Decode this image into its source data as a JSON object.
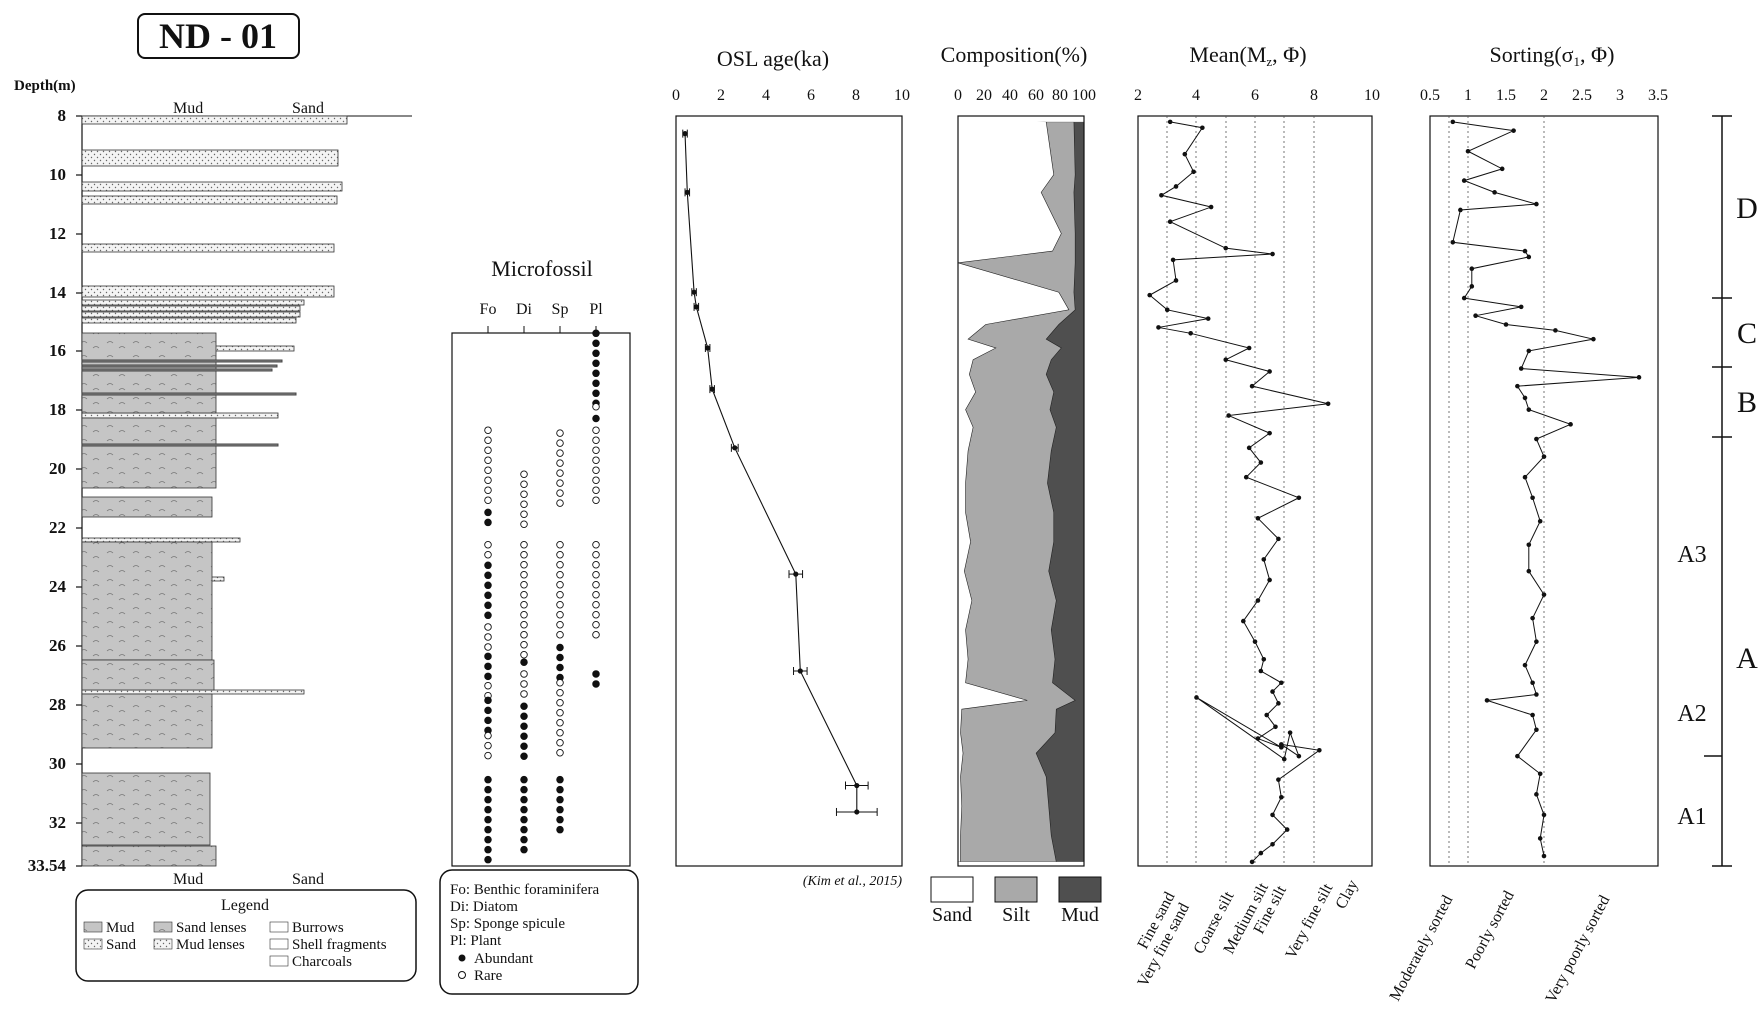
{
  "figure": {
    "core_id": "ND - 01",
    "depth_label": "Depth(m)",
    "depth_ticks": [
      "8",
      "10",
      "12",
      "14",
      "16",
      "18",
      "20",
      "22",
      "24",
      "26",
      "28",
      "30",
      "32",
      "33.54"
    ],
    "log_top_labels": [
      "Mud",
      "Sand"
    ],
    "log_bottom_labels": [
      "Mud",
      "Sand"
    ],
    "legend": {
      "title": "Legend",
      "items": [
        "Mud",
        "Sand",
        "Sand lenses",
        "Mud lenses",
        "Burrows",
        "Shell fragments",
        "Charcoals"
      ]
    },
    "microfossil": {
      "title": "Microfossil",
      "columns": [
        "Fo",
        "Di",
        "Sp",
        "Pl"
      ],
      "legend_lines": [
        "Fo: Benthic foraminifera",
        "Di: Diatom",
        "Sp: Sponge spicule",
        "Pl: Plant",
        "Abundant",
        "Rare"
      ]
    },
    "osl": {
      "title": "OSL age(ka)",
      "ticks": [
        "0",
        "2",
        "4",
        "6",
        "8",
        "10"
      ],
      "citation": "(Kim et al., 2015)"
    },
    "composition": {
      "title": "Composition(%)",
      "ticks": [
        "0",
        "20",
        "40",
        "60",
        "80",
        "100"
      ],
      "legend": [
        "Sand",
        "Silt",
        "Mud"
      ],
      "colors": {
        "sand": "#ffffff",
        "silt": "#a9a9a9",
        "mud": "#4f4f4f"
      }
    },
    "mean": {
      "title": "Mean(M",
      "title_sub": "z",
      "title_tail": ", Φ)",
      "ticks": [
        "2",
        "4",
        "6",
        "8",
        "10"
      ],
      "classes": [
        "Fine sand",
        "Very fine sand",
        "Coarse silt",
        "Medium silt",
        "Fine silt",
        "Very fine silt",
        "Clay"
      ]
    },
    "sorting": {
      "title": "Sorting(σ",
      "title_sub": "1",
      "title_tail": ", Φ)",
      "ticks": [
        "0.5",
        "1",
        "1.5",
        "2",
        "2.5",
        "3",
        "3.5"
      ],
      "classes": [
        "Moderately sorted",
        "Poorly sorted",
        "Very poorly sorted"
      ]
    },
    "units": {
      "major": [
        "D",
        "C",
        "B",
        "A"
      ],
      "sub": [
        "A3",
        "A2",
        "A1"
      ]
    }
  },
  "chart_data": [
    {
      "type": "line",
      "title": "OSL age(ka)",
      "xlim": [
        0,
        10
      ],
      "ylim": [
        33.54,
        8
      ],
      "series": [
        {
          "x": [
            0.4,
            0.5,
            0.8,
            0.9,
            1.4,
            1.6,
            2.6,
            5.3,
            5.5,
            8.0,
            8.0
          ],
          "y": [
            8.6,
            10.6,
            14.0,
            14.5,
            15.9,
            17.3,
            19.3,
            23.6,
            26.9,
            30.8,
            31.7
          ],
          "error": [
            0.1,
            0.1,
            0.1,
            0.1,
            0.1,
            0.1,
            0.15,
            0.3,
            0.3,
            0.5,
            0.9
          ]
        }
      ]
    },
    {
      "type": "area",
      "title": "Composition(%)",
      "xlim": [
        0,
        100
      ],
      "ylim": [
        33.54,
        8
      ],
      "depth": [
        8.2,
        10.0,
        10.6,
        12.0,
        12.6,
        13.0,
        14.0,
        14.6,
        15.1,
        15.6,
        15.9,
        16.3,
        16.8,
        17.4,
        18.0,
        18.6,
        19.4,
        20.5,
        21.5,
        22.5,
        23.5,
        24.5,
        25.5,
        26.5,
        27.3,
        27.9,
        28.2,
        29.0,
        29.7,
        30.5,
        31.5,
        32.5,
        33.4
      ],
      "sand_pct": [
        70,
        76,
        66,
        82,
        75,
        0,
        80,
        88,
        22,
        8,
        30,
        12,
        9,
        14,
        6,
        12,
        8,
        6,
        6,
        10,
        5,
        11,
        6,
        8,
        6,
        55,
        3,
        2,
        4,
        2,
        3,
        2,
        2
      ],
      "sand_silt_pct": [
        92,
        93,
        92,
        93,
        93,
        93,
        92,
        93,
        80,
        70,
        82,
        74,
        70,
        76,
        73,
        78,
        74,
        71,
        76,
        76,
        72,
        78,
        74,
        77,
        75,
        93,
        78,
        77,
        62,
        70,
        72,
        74,
        78
      ]
    },
    {
      "type": "line",
      "title": "Mean(Mz, Φ)",
      "xlim": [
        2,
        10
      ],
      "ylim": [
        33.54,
        8
      ],
      "series": [
        {
          "x": [
            3.1,
            4.2,
            3.6,
            3.9,
            3.3,
            2.8,
            4.5,
            3.1,
            5.0,
            6.6,
            3.2,
            3.3,
            2.4,
            3.0,
            4.4,
            2.7,
            3.8,
            5.8,
            5.0,
            6.5,
            5.9,
            8.5,
            5.1,
            6.5,
            5.8,
            6.2,
            5.7,
            7.5,
            6.1,
            6.8,
            6.3,
            6.5,
            6.1,
            5.6,
            6.0,
            6.3,
            6.2,
            6.9,
            6.6,
            6.8,
            6.4,
            6.7,
            6.1,
            6.9,
            4.0,
            7.0,
            7.2,
            7.5,
            6.9,
            8.2,
            6.8,
            6.9,
            6.6,
            7.1,
            6.6,
            6.2,
            5.9
          ],
          "y": [
            8.2,
            8.4,
            9.3,
            9.9,
            10.4,
            10.7,
            11.1,
            11.6,
            12.5,
            12.7,
            12.9,
            13.6,
            14.1,
            14.6,
            14.9,
            15.2,
            15.4,
            15.9,
            16.3,
            16.7,
            17.2,
            17.8,
            18.2,
            18.8,
            19.3,
            19.8,
            20.3,
            21.0,
            21.7,
            22.4,
            23.1,
            23.8,
            24.5,
            25.2,
            25.9,
            26.5,
            26.9,
            27.3,
            27.6,
            28.0,
            28.4,
            28.8,
            29.2,
            29.5,
            27.8,
            29.9,
            29.0,
            29.8,
            29.4,
            29.6,
            30.6,
            31.2,
            31.8,
            32.3,
            32.8,
            33.1,
            33.4
          ]
        }
      ]
    },
    {
      "type": "line",
      "title": "Sorting(σ1, Φ)",
      "xlim": [
        0.5,
        3.5
      ],
      "ylim": [
        33.54,
        8
      ],
      "series": [
        {
          "x": [
            0.8,
            1.6,
            1.0,
            1.45,
            0.95,
            1.35,
            1.9,
            0.9,
            0.8,
            1.75,
            1.8,
            1.05,
            1.05,
            0.95,
            1.7,
            1.1,
            1.5,
            2.15,
            2.65,
            1.8,
            1.7,
            3.25,
            1.65,
            1.75,
            1.8,
            2.35,
            1.9,
            2.0,
            1.75,
            1.85,
            1.95,
            1.8,
            1.8,
            2.0,
            1.85,
            1.9,
            1.75,
            1.85,
            1.9,
            1.25,
            1.85,
            1.9,
            1.65,
            1.95,
            1.9,
            2.0,
            1.95,
            2.0
          ],
          "y": [
            8.2,
            8.5,
            9.2,
            9.8,
            10.2,
            10.6,
            11.0,
            11.2,
            12.3,
            12.6,
            12.8,
            13.2,
            13.8,
            14.2,
            14.5,
            14.8,
            15.1,
            15.3,
            15.6,
            16.0,
            16.6,
            16.9,
            17.2,
            17.6,
            18.0,
            18.5,
            19.0,
            19.6,
            20.3,
            21.0,
            21.8,
            22.6,
            23.5,
            24.3,
            25.1,
            25.9,
            26.7,
            27.3,
            27.7,
            27.9,
            28.4,
            28.9,
            29.8,
            30.4,
            31.1,
            31.8,
            32.6,
            33.2
          ]
        }
      ]
    }
  ]
}
